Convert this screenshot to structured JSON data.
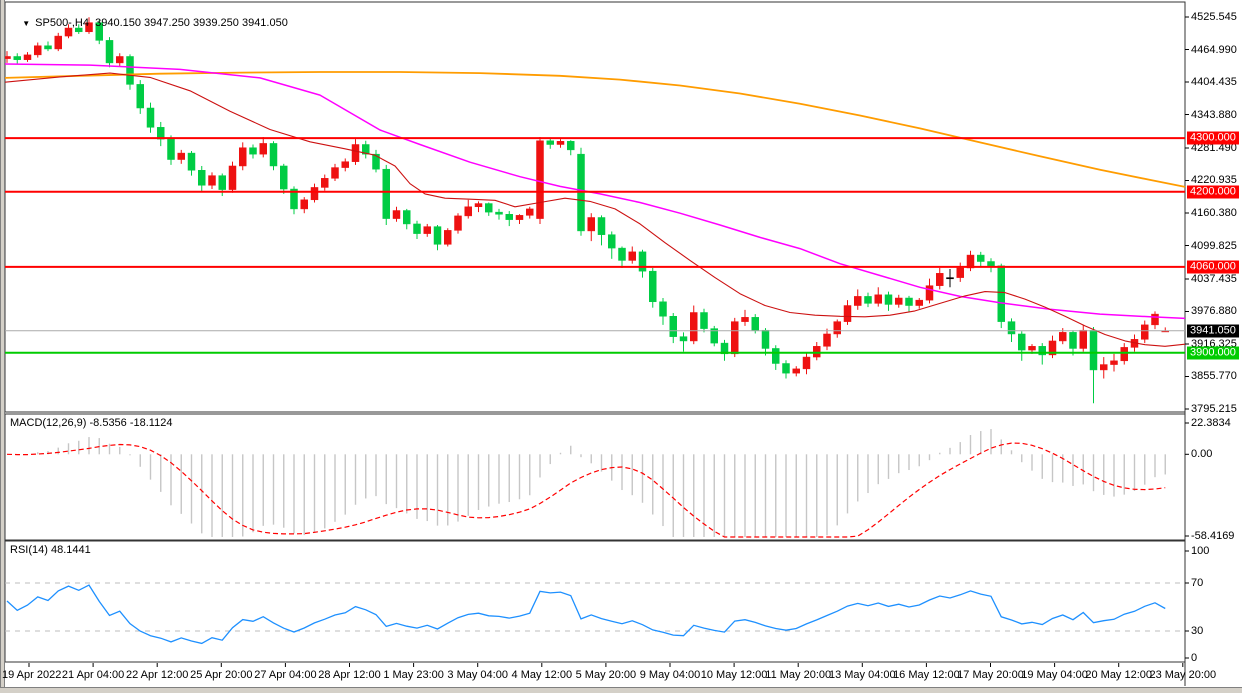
{
  "app": {
    "symbol": "SP500-,H4",
    "open": "3940.150",
    "high": "3947.250",
    "low": "3939.250",
    "close": "3941.050"
  },
  "indicators": {
    "macd": {
      "label": "MACD(12,26,9)",
      "values": "-8.5356 -18.1124",
      "axis_labels": [
        "22.3834",
        "0.00",
        "-58.4169"
      ],
      "axis_values": [
        22.3834,
        0.0,
        -58.4169
      ]
    },
    "rsi": {
      "label": "RSI(14)",
      "value": "48.1441",
      "axis_labels": [
        "100",
        "70",
        "30",
        "0"
      ],
      "levels": [
        70,
        30
      ]
    }
  },
  "price_axis": {
    "ticks": [
      "4525.545",
      "4464.990",
      "4404.435",
      "4343.880",
      "4281.490",
      "4220.935",
      "4160.380",
      "4099.825",
      "4037.435",
      "3976.880",
      "3916.325",
      "3855.770",
      "3795.215"
    ],
    "levels": [
      {
        "label": "4300.000",
        "price": 4300.0,
        "bg": "#ff0000",
        "type": "resistance-line"
      },
      {
        "label": "4200.000",
        "price": 4200.0,
        "bg": "#ff0000",
        "type": "resistance-line"
      },
      {
        "label": "4060.000",
        "price": 4060.0,
        "bg": "#ff0000",
        "type": "resistance-line"
      },
      {
        "label": "3941.050",
        "price": 3941.05,
        "bg": "#000000",
        "type": "current-price"
      },
      {
        "label": "3900.000",
        "price": 3900.0,
        "bg": "#00cc00",
        "type": "support-line"
      }
    ]
  },
  "time_axis": {
    "labels": [
      "19 Apr 2022",
      "21 Apr 04:00",
      "22 Apr 12:00",
      "25 Apr 20:00",
      "27 Apr 04:00",
      "28 Apr 12:00",
      "1 May 23:00",
      "3 May 04:00",
      "4 May 12:00",
      "5 May 20:00",
      "9 May 04:00",
      "10 May 12:00",
      "11 May 20:00",
      "13 May 04:00",
      "16 May 12:00",
      "17 May 20:00",
      "19 May 04:00",
      "20 May 12:00",
      "23 May 20:00"
    ]
  },
  "colors": {
    "bull_candle": "#ee1111",
    "bear_candle": "#00cc44",
    "doji_candle": "#000000",
    "resistance_line": "#ff0000",
    "support_line": "#00cc00",
    "current_price_line": "#aaaaaa",
    "ma_slow": "#ff9c00",
    "ma_mid": "#ff00ff",
    "ma_fast": "#cc1111",
    "macd_histogram": "#c6c6c6",
    "macd_signal": "#ff0000",
    "rsi_line": "#1e90ff",
    "rsi_level_dash": "#bdbdbd",
    "panel_border": "#333333"
  },
  "chart_data": {
    "type": "candlestick",
    "timeframe": "H4",
    "symbol": "SP500-",
    "price_range": [
      3795.215,
      4525.545
    ],
    "macd_range": [
      -58.4169,
      22.3834
    ],
    "rsi_range": [
      0,
      100
    ],
    "grid": false,
    "candles_ohlc": [
      [
        4448,
        4462,
        4440,
        4452
      ],
      [
        4452,
        4458,
        4438,
        4446
      ],
      [
        4446,
        4460,
        4442,
        4455
      ],
      [
        4455,
        4478,
        4450,
        4472
      ],
      [
        4472,
        4480,
        4462,
        4466
      ],
      [
        4466,
        4496,
        4462,
        4490
      ],
      [
        4490,
        4512,
        4486,
        4505
      ],
      [
        4505,
        4512,
        4494,
        4498
      ],
      [
        4498,
        4525,
        4494,
        4515
      ],
      [
        4515,
        4520,
        4475,
        4482
      ],
      [
        4482,
        4488,
        4432,
        4440
      ],
      [
        4440,
        4458,
        4434,
        4452
      ],
      [
        4452,
        4456,
        4390,
        4400
      ],
      [
        4400,
        4408,
        4345,
        4356
      ],
      [
        4356,
        4366,
        4310,
        4320
      ],
      [
        4320,
        4330,
        4285,
        4298
      ],
      [
        4298,
        4305,
        4250,
        4260
      ],
      [
        4260,
        4278,
        4252,
        4272
      ],
      [
        4272,
        4276,
        4230,
        4240
      ],
      [
        4240,
        4248,
        4200,
        4212
      ],
      [
        4212,
        4236,
        4205,
        4230
      ],
      [
        4230,
        4234,
        4192,
        4204
      ],
      [
        4204,
        4256,
        4198,
        4248
      ],
      [
        4248,
        4292,
        4240,
        4282
      ],
      [
        4282,
        4288,
        4262,
        4270
      ],
      [
        4270,
        4302,
        4264,
        4290
      ],
      [
        4290,
        4294,
        4240,
        4248
      ],
      [
        4248,
        4252,
        4196,
        4205
      ],
      [
        4205,
        4210,
        4158,
        4168
      ],
      [
        4168,
        4190,
        4160,
        4185
      ],
      [
        4185,
        4215,
        4180,
        4208
      ],
      [
        4208,
        4232,
        4202,
        4225
      ],
      [
        4225,
        4252,
        4220,
        4245
      ],
      [
        4245,
        4262,
        4238,
        4256
      ],
      [
        4256,
        4298,
        4250,
        4288
      ],
      [
        4288,
        4295,
        4262,
        4270
      ],
      [
        4270,
        4278,
        4236,
        4242
      ],
      [
        4242,
        4250,
        4138,
        4150
      ],
      [
        4150,
        4172,
        4144,
        4165
      ],
      [
        4165,
        4168,
        4130,
        4140
      ],
      [
        4140,
        4146,
        4112,
        4122
      ],
      [
        4122,
        4140,
        4116,
        4135
      ],
      [
        4135,
        4138,
        4091,
        4102
      ],
      [
        4102,
        4132,
        4098,
        4128
      ],
      [
        4128,
        4160,
        4122,
        4155
      ],
      [
        4155,
        4185,
        4150,
        4172
      ],
      [
        4172,
        4182,
        4162,
        4178
      ],
      [
        4178,
        4180,
        4155,
        4162
      ],
      [
        4162,
        4168,
        4148,
        4158
      ],
      [
        4158,
        4164,
        4136,
        4148
      ],
      [
        4148,
        4158,
        4140,
        4156
      ],
      [
        4156,
        4172,
        4150,
        4168
      ],
      [
        4150,
        4302,
        4140,
        4295
      ],
      [
        4295,
        4299,
        4280,
        4288
      ],
      [
        4288,
        4298,
        4282,
        4294
      ],
      [
        4294,
        4296,
        4268,
        4278
      ],
      [
        4270,
        4282,
        4118,
        4127
      ],
      [
        4127,
        4160,
        4108,
        4152
      ],
      [
        4152,
        4156,
        4100,
        4120
      ],
      [
        4120,
        4126,
        4075,
        4095
      ],
      [
        4095,
        4098,
        4058,
        4072
      ],
      [
        4072,
        4098,
        4066,
        4088
      ],
      [
        4088,
        4092,
        4040,
        4052
      ],
      [
        4052,
        4058,
        3984,
        3995
      ],
      [
        3995,
        4002,
        3952,
        3968
      ],
      [
        3968,
        3974,
        3918,
        3930
      ],
      [
        3930,
        3938,
        3902,
        3922
      ],
      [
        3922,
        3988,
        3916,
        3975
      ],
      [
        3975,
        3982,
        3938,
        3945
      ],
      [
        3945,
        3950,
        3912,
        3918
      ],
      [
        3918,
        3924,
        3885,
        3898
      ],
      [
        3898,
        3965,
        3892,
        3958
      ],
      [
        3958,
        3980,
        3950,
        3966
      ],
      [
        3966,
        3972,
        3936,
        3942
      ],
      [
        3942,
        3946,
        3895,
        3908
      ],
      [
        3908,
        3914,
        3868,
        3880
      ],
      [
        3880,
        3886,
        3852,
        3862
      ],
      [
        3862,
        3875,
        3856,
        3870
      ],
      [
        3870,
        3900,
        3860,
        3892
      ],
      [
        3892,
        3920,
        3886,
        3912
      ],
      [
        3912,
        3945,
        3905,
        3935
      ],
      [
        3935,
        3962,
        3928,
        3958
      ],
      [
        3958,
        3998,
        3952,
        3988
      ],
      [
        3988,
        4018,
        3980,
        4005
      ],
      [
        4005,
        4012,
        3985,
        3992
      ],
      [
        3992,
        4022,
        3986,
        4008
      ],
      [
        4008,
        4014,
        3978,
        3990
      ],
      [
        3990,
        4008,
        3984,
        4002
      ],
      [
        4002,
        4006,
        3975,
        3988
      ],
      [
        3988,
        4002,
        3982,
        3998
      ],
      [
        3998,
        4038,
        3992,
        4025
      ],
      [
        4025,
        4058,
        4018,
        4048
      ],
      [
        4040,
        4056,
        4022,
        4040
      ],
      [
        4040,
        4068,
        4032,
        4058
      ],
      [
        4058,
        4090,
        4052,
        4082
      ],
      [
        4082,
        4088,
        4060,
        4070
      ],
      [
        4070,
        4076,
        4050,
        4062
      ],
      [
        4062,
        4066,
        3946,
        3958
      ],
      [
        3958,
        3964,
        3920,
        3935
      ],
      [
        3935,
        3940,
        3885,
        3905
      ],
      [
        3905,
        3916,
        3898,
        3912
      ],
      [
        3912,
        3918,
        3878,
        3896
      ],
      [
        3896,
        3932,
        3890,
        3922
      ],
      [
        3922,
        3946,
        3916,
        3938
      ],
      [
        3938,
        3942,
        3895,
        3908
      ],
      [
        3908,
        3952,
        3902,
        3942
      ],
      [
        3942,
        3948,
        3806,
        3868
      ],
      [
        3868,
        3892,
        3852,
        3878
      ],
      [
        3878,
        3898,
        3865,
        3885
      ],
      [
        3885,
        3918,
        3878,
        3910
      ],
      [
        3910,
        3934,
        3902,
        3925
      ],
      [
        3925,
        3960,
        3918,
        3952
      ],
      [
        3952,
        3977,
        3944,
        3972
      ],
      [
        3940.15,
        3947.25,
        3939.25,
        3941.05
      ]
    ],
    "moving_averages": [
      {
        "name": "ma-slow-orange",
        "color_key": "ma_slow",
        "width": 1.8,
        "points": [
          [
            5,
            4412
          ],
          [
            80,
            4416
          ],
          [
            160,
            4420
          ],
          [
            240,
            4422
          ],
          [
            320,
            4423
          ],
          [
            400,
            4423
          ],
          [
            480,
            4421
          ],
          [
            560,
            4416
          ],
          [
            620,
            4409
          ],
          [
            680,
            4398
          ],
          [
            740,
            4383
          ],
          [
            800,
            4364
          ],
          [
            860,
            4342
          ],
          [
            920,
            4318
          ],
          [
            980,
            4292
          ],
          [
            1040,
            4266
          ],
          [
            1100,
            4241
          ],
          [
            1150,
            4222
          ],
          [
            1185,
            4209
          ]
        ]
      },
      {
        "name": "ma-mid-magenta",
        "color_key": "ma_mid",
        "width": 1.5,
        "points": [
          [
            5,
            4438
          ],
          [
            90,
            4436
          ],
          [
            180,
            4428
          ],
          [
            260,
            4412
          ],
          [
            320,
            4380
          ],
          [
            380,
            4315
          ],
          [
            420,
            4288
          ],
          [
            470,
            4255
          ],
          [
            520,
            4228
          ],
          [
            560,
            4210
          ],
          [
            600,
            4196
          ],
          [
            640,
            4180
          ],
          [
            680,
            4160
          ],
          [
            720,
            4138
          ],
          [
            760,
            4115
          ],
          [
            800,
            4094
          ],
          [
            840,
            4066
          ],
          [
            880,
            4044
          ],
          [
            920,
            4022
          ],
          [
            960,
            4005
          ],
          [
            1000,
            3993
          ],
          [
            1050,
            3981
          ],
          [
            1100,
            3972
          ],
          [
            1150,
            3967
          ],
          [
            1185,
            3964
          ]
        ]
      },
      {
        "name": "ma-fast-red",
        "color_key": "ma_fast",
        "width": 1.1,
        "points": [
          [
            5,
            4404
          ],
          [
            60,
            4414
          ],
          [
            110,
            4421
          ],
          [
            150,
            4413
          ],
          [
            190,
            4388
          ],
          [
            230,
            4350
          ],
          [
            270,
            4316
          ],
          [
            310,
            4293
          ],
          [
            345,
            4280
          ],
          [
            375,
            4268
          ],
          [
            395,
            4248
          ],
          [
            410,
            4215
          ],
          [
            425,
            4196
          ],
          [
            445,
            4188
          ],
          [
            470,
            4186
          ],
          [
            495,
            4184
          ],
          [
            515,
            4172
          ],
          [
            540,
            4180
          ],
          [
            565,
            4188
          ],
          [
            590,
            4182
          ],
          [
            615,
            4168
          ],
          [
            640,
            4140
          ],
          [
            665,
            4105
          ],
          [
            690,
            4072
          ],
          [
            715,
            4040
          ],
          [
            740,
            4010
          ],
          [
            765,
            3988
          ],
          [
            790,
            3975
          ],
          [
            815,
            3970
          ],
          [
            840,
            3968
          ],
          [
            865,
            3967
          ],
          [
            890,
            3970
          ],
          [
            915,
            3978
          ],
          [
            940,
            3992
          ],
          [
            965,
            4006
          ],
          [
            985,
            4014
          ],
          [
            1005,
            4012
          ],
          [
            1025,
            4000
          ],
          [
            1045,
            3985
          ],
          [
            1065,
            3968
          ],
          [
            1085,
            3950
          ],
          [
            1105,
            3934
          ],
          [
            1125,
            3922
          ],
          [
            1145,
            3915
          ],
          [
            1165,
            3912
          ],
          [
            1185,
            3916
          ]
        ]
      }
    ]
  }
}
